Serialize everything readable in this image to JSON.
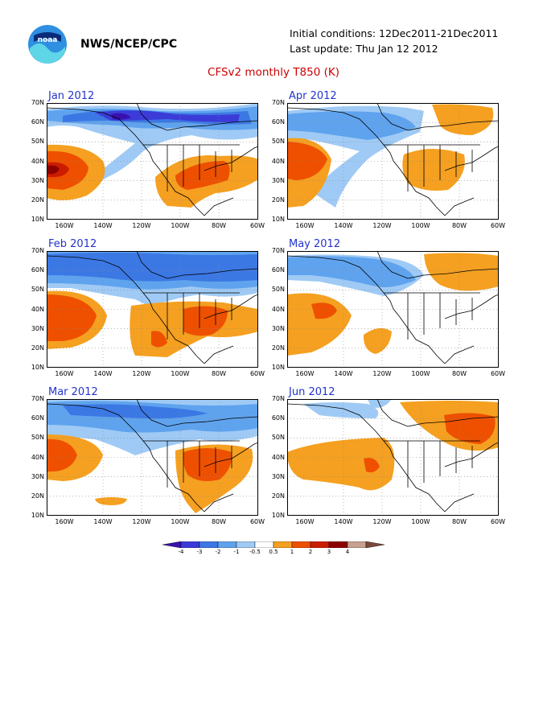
{
  "header": {
    "logo_text": "noaa",
    "org": "NWS/NCEP/CPC",
    "initial_conditions": "Initial conditions: 12Dec2011-21Dec2011",
    "last_update": "Last update: Thu Jan 12 2012",
    "title": "CFSv2 monthly T850 (K)"
  },
  "axes": {
    "lat_labels": [
      "70N",
      "60N",
      "50N",
      "40N",
      "30N",
      "20N",
      "10N"
    ],
    "lon_labels": [
      "160W",
      "140W",
      "120W",
      "100W",
      "80W",
      "60W"
    ]
  },
  "panels": [
    {
      "title": "Jan 2012"
    },
    {
      "title": "Apr 2012"
    },
    {
      "title": "Feb 2012"
    },
    {
      "title": "May 2012"
    },
    {
      "title": "Mar 2012"
    },
    {
      "title": "Jun 2012"
    }
  ],
  "colorbar": {
    "labels": [
      "-4",
      "-3",
      "-2",
      "-1",
      "-0.5",
      "0.5",
      "1",
      "2",
      "3",
      "4"
    ],
    "colors": [
      "#3a10b0",
      "#3b3bd8",
      "#3c78e4",
      "#5fa3ee",
      "#9fcaf5",
      "#ffffff",
      "#f5a020",
      "#ee5000",
      "#cc1c00",
      "#8c0000",
      "#c8a090",
      "#7a4a3a"
    ]
  },
  "colors": {
    "title_red": "#cc0000",
    "panel_title_blue": "#2233cc"
  }
}
